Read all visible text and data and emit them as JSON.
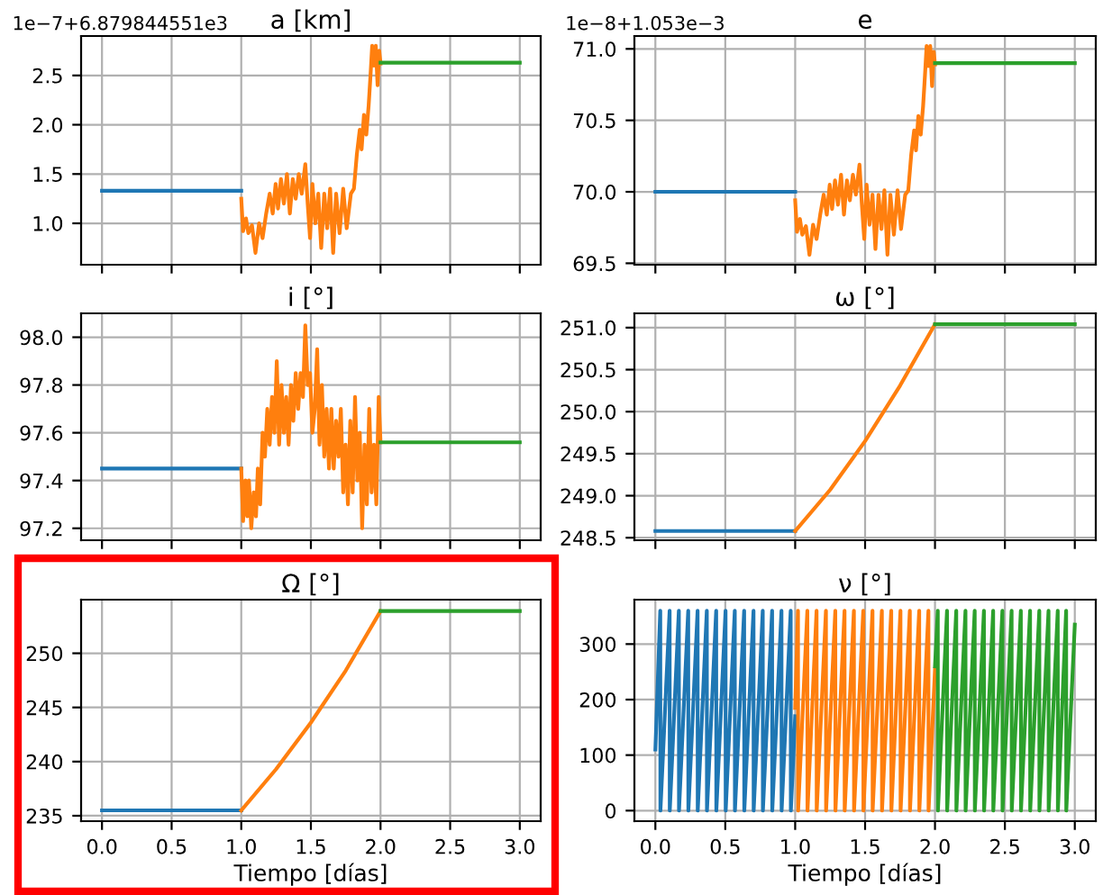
{
  "chart_data": [
    {
      "type": "line",
      "title": "a [km]",
      "annotations": [
        "1e−7+6.879844551e3"
      ],
      "xlim": [
        -0.15,
        3.15
      ],
      "xticks": [
        0,
        0.5,
        1,
        1.5,
        2,
        2.5,
        3
      ],
      "ylim": [
        0.58,
        2.9
      ],
      "yticks": [
        {
          "value": 1.0,
          "label": "1.0"
        },
        {
          "value": 1.5,
          "label": "1.5"
        },
        {
          "value": 2.0,
          "label": "2.0"
        },
        {
          "value": 2.5,
          "label": "2.5"
        }
      ],
      "grid": true,
      "tick_labels": "y",
      "series": [
        {
          "color": "#1f77b4",
          "x": [
            0,
            1
          ],
          "values": [
            1.33,
            1.33
          ]
        },
        {
          "color": "#ff7f0e",
          "x": [
            1.0,
            1.013,
            1.034,
            1.051,
            1.077,
            1.102,
            1.128,
            1.153,
            1.179,
            1.204,
            1.226,
            1.247,
            1.264,
            1.285,
            1.306,
            1.328,
            1.349,
            1.37,
            1.391,
            1.413,
            1.434,
            1.46,
            1.477,
            1.494,
            1.511,
            1.532,
            1.553,
            1.574,
            1.596,
            1.617,
            1.638,
            1.66,
            1.681,
            1.706,
            1.732,
            1.757,
            1.787,
            1.809,
            1.83,
            1.851,
            1.864,
            1.881,
            1.898,
            1.915,
            1.928,
            1.94,
            1.953,
            1.966,
            1.979,
            1.991,
            2.0
          ],
          "values": [
            1.25,
            0.92,
            1.05,
            0.9,
            0.98,
            0.7,
            1.0,
            0.85,
            1.1,
            1.3,
            1.1,
            1.4,
            1.15,
            1.45,
            1.2,
            1.5,
            1.1,
            1.45,
            1.25,
            1.5,
            1.3,
            1.6,
            1.2,
            0.85,
            1.4,
            1.0,
            1.3,
            0.75,
            1.3,
            0.95,
            1.35,
            0.7,
            1.3,
            0.9,
            1.35,
            0.95,
            1.3,
            1.35,
            1.7,
            1.95,
            1.75,
            2.1,
            1.9,
            2.2,
            2.5,
            2.8,
            2.6,
            2.8,
            2.4,
            2.75,
            2.62
          ]
        },
        {
          "color": "#2ca02c",
          "x": [
            2,
            3
          ],
          "values": [
            2.63,
            2.63
          ]
        }
      ]
    },
    {
      "type": "line",
      "title": "e",
      "annotations": [
        "1e−8+1.053e−3"
      ],
      "xlim": [
        -0.15,
        3.15
      ],
      "xticks": [
        0,
        0.5,
        1,
        1.5,
        2,
        2.5,
        3
      ],
      "ylim": [
        69.49,
        71.09
      ],
      "yticks": [
        {
          "value": 69.5,
          "label": "69.5"
        },
        {
          "value": 70.0,
          "label": "70.0"
        },
        {
          "value": 70.5,
          "label": "70.5"
        },
        {
          "value": 71.0,
          "label": "71.0"
        }
      ],
      "grid": true,
      "tick_labels": "y",
      "series": [
        {
          "color": "#1f77b4",
          "x": [
            0,
            1
          ],
          "values": [
            70.0,
            70.0
          ]
        },
        {
          "color": "#ff7f0e",
          "x": [
            1.0,
            1.013,
            1.034,
            1.051,
            1.077,
            1.102,
            1.128,
            1.153,
            1.179,
            1.204,
            1.226,
            1.247,
            1.264,
            1.285,
            1.306,
            1.328,
            1.349,
            1.37,
            1.391,
            1.413,
            1.434,
            1.46,
            1.477,
            1.494,
            1.511,
            1.532,
            1.553,
            1.574,
            1.596,
            1.617,
            1.638,
            1.66,
            1.681,
            1.706,
            1.732,
            1.757,
            1.787,
            1.809,
            1.83,
            1.851,
            1.864,
            1.881,
            1.898,
            1.915,
            1.928,
            1.94,
            1.953,
            1.966,
            1.979,
            1.991,
            2.0
          ],
          "values": [
            69.94,
            69.72,
            69.81,
            69.7,
            69.76,
            69.56,
            69.77,
            69.67,
            69.84,
            69.98,
            69.84,
            70.05,
            69.88,
            70.08,
            69.91,
            70.12,
            69.84,
            70.08,
            69.94,
            70.12,
            69.98,
            70.19,
            69.91,
            69.67,
            70.05,
            69.77,
            69.98,
            69.6,
            69.98,
            69.74,
            70.01,
            69.56,
            69.98,
            69.7,
            70.01,
            69.74,
            69.98,
            70.01,
            70.26,
            70.43,
            70.29,
            70.53,
            70.4,
            70.6,
            70.81,
            71.02,
            70.88,
            71.02,
            70.74,
            70.98,
            70.89
          ]
        },
        {
          "color": "#2ca02c",
          "x": [
            2,
            3
          ],
          "values": [
            70.9,
            70.9
          ]
        }
      ]
    },
    {
      "type": "line",
      "title": "i [°]",
      "xlim": [
        -0.15,
        3.15
      ],
      "xticks": [
        0,
        0.5,
        1,
        1.5,
        2,
        2.5,
        3
      ],
      "ylim": [
        97.15,
        98.1
      ],
      "yticks": [
        97.2,
        97.4,
        97.6,
        97.8,
        {
          "value": 98.0,
          "label": "98.0"
        }
      ],
      "grid": true,
      "tick_labels": "y",
      "series": [
        {
          "color": "#1f77b4",
          "x": [
            0,
            1
          ],
          "values": [
            97.45,
            97.45
          ]
        },
        {
          "color": "#ff7f0e",
          "x": [
            1.0,
            1.013,
            1.03,
            1.043,
            1.055,
            1.072,
            1.089,
            1.106,
            1.119,
            1.136,
            1.153,
            1.17,
            1.187,
            1.204,
            1.221,
            1.238,
            1.255,
            1.272,
            1.289,
            1.306,
            1.323,
            1.34,
            1.357,
            1.374,
            1.391,
            1.409,
            1.426,
            1.443,
            1.46,
            1.477,
            1.494,
            1.511,
            1.528,
            1.545,
            1.562,
            1.579,
            1.596,
            1.613,
            1.63,
            1.647,
            1.664,
            1.681,
            1.698,
            1.715,
            1.732,
            1.749,
            1.766,
            1.783,
            1.8,
            1.817,
            1.834,
            1.851,
            1.868,
            1.885,
            1.902,
            1.919,
            1.936,
            1.953,
            1.97,
            1.987,
            2.0
          ],
          "values": [
            97.45,
            97.23,
            97.4,
            97.25,
            97.4,
            97.2,
            97.35,
            97.25,
            97.45,
            97.3,
            97.6,
            97.5,
            97.7,
            97.55,
            97.75,
            97.6,
            97.9,
            97.55,
            97.8,
            97.6,
            97.75,
            97.55,
            97.8,
            97.65,
            97.85,
            97.7,
            97.85,
            97.75,
            98.05,
            97.8,
            97.85,
            97.6,
            97.7,
            97.95,
            97.55,
            97.8,
            97.5,
            97.7,
            97.45,
            97.7,
            97.45,
            97.65,
            97.5,
            97.7,
            97.35,
            97.55,
            97.3,
            97.65,
            97.35,
            97.75,
            97.4,
            97.6,
            97.2,
            97.55,
            97.3,
            97.7,
            97.35,
            97.55,
            97.3,
            97.75,
            97.56
          ]
        },
        {
          "color": "#2ca02c",
          "x": [
            2,
            3
          ],
          "values": [
            97.56,
            97.56
          ]
        }
      ]
    },
    {
      "type": "line",
      "title": "ω [°]",
      "xlim": [
        -0.15,
        3.15
      ],
      "xticks": [
        0,
        0.5,
        1,
        1.5,
        2,
        2.5,
        3
      ],
      "ylim": [
        248.47,
        251.17
      ],
      "yticks": [
        248.5,
        {
          "value": 249.0,
          "label": "249.0"
        },
        249.5,
        {
          "value": 250.0,
          "label": "250.0"
        },
        250.5,
        {
          "value": 251.0,
          "label": "251.0"
        }
      ],
      "grid": true,
      "tick_labels": "y",
      "series": [
        {
          "color": "#1f77b4",
          "x": [
            0,
            1
          ],
          "values": [
            248.58,
            248.58
          ]
        },
        {
          "color": "#ff7f0e",
          "x": [
            1.0,
            1.25,
            1.5,
            1.75,
            2.0
          ],
          "values": [
            248.58,
            249.07,
            249.65,
            250.31,
            251.04
          ]
        },
        {
          "color": "#2ca02c",
          "x": [
            2,
            3
          ],
          "values": [
            251.04,
            251.04
          ]
        }
      ]
    },
    {
      "type": "line",
      "title": "Ω [°]",
      "xlabel": "Tiempo [días]",
      "xlim": [
        -0.15,
        3.15
      ],
      "xticks": [
        {
          "value": 0.0,
          "label": "0.0"
        },
        {
          "value": 0.5,
          "label": "0.5"
        },
        {
          "value": 1.0,
          "label": "1.0"
        },
        {
          "value": 1.5,
          "label": "1.5"
        },
        {
          "value": 2.0,
          "label": "2.0"
        },
        {
          "value": 2.5,
          "label": "2.5"
        },
        {
          "value": 3.0,
          "label": "3.0"
        }
      ],
      "ylim": [
        234.5,
        254.95
      ],
      "yticks": [
        235,
        240,
        245,
        250
      ],
      "grid": true,
      "series": [
        {
          "color": "#1f77b4",
          "x": [
            0,
            1
          ],
          "values": [
            235.5,
            235.5
          ]
        },
        {
          "color": "#ff7f0e",
          "x": [
            1.0,
            1.25,
            1.5,
            1.75,
            2.0
          ],
          "values": [
            235.5,
            239.3,
            243.6,
            248.4,
            253.9
          ]
        },
        {
          "color": "#2ca02c",
          "x": [
            2,
            3
          ],
          "values": [
            253.9,
            253.9
          ]
        }
      ]
    },
    {
      "type": "line",
      "title": "ν [°]",
      "xlabel": "Tiempo [días]",
      "xlim": [
        -0.15,
        3.15
      ],
      "xticks": [
        {
          "value": 0.0,
          "label": "0.0"
        },
        {
          "value": 0.5,
          "label": "0.5"
        },
        {
          "value": 1.0,
          "label": "1.0"
        },
        {
          "value": 1.5,
          "label": "1.5"
        },
        {
          "value": 2.0,
          "label": "2.0"
        },
        {
          "value": 2.5,
          "label": "2.5"
        },
        {
          "value": 3.0,
          "label": "3.0"
        }
      ],
      "ylim": [
        -19,
        380
      ],
      "yticks": [
        0,
        100,
        200,
        300
      ],
      "grid": true,
      "series": [
        {
          "color": "#1f77b4",
          "x": [
            0.0,
            0.035,
            0.036,
            0.102,
            0.103,
            0.168,
            0.169,
            0.235,
            0.236,
            0.302,
            0.303,
            0.368,
            0.369,
            0.435,
            0.436,
            0.502,
            0.503,
            0.568,
            0.569,
            0.635,
            0.636,
            0.702,
            0.703,
            0.768,
            0.769,
            0.835,
            0.836,
            0.902,
            0.903,
            0.968,
            0.969,
            1.0
          ],
          "values": [
            110,
            360,
            0,
            360,
            0,
            360,
            0,
            360,
            0,
            360,
            0,
            360,
            0,
            360,
            0,
            360,
            0,
            360,
            0,
            360,
            0,
            360,
            0,
            360,
            0,
            360,
            0,
            360,
            0,
            360,
            0,
            170
          ]
        },
        {
          "color": "#ff7f0e",
          "x": [
            1.0,
            1.02,
            1.021,
            1.087,
            1.088,
            1.153,
            1.154,
            1.22,
            1.221,
            1.287,
            1.288,
            1.353,
            1.354,
            1.42,
            1.421,
            1.487,
            1.488,
            1.553,
            1.554,
            1.62,
            1.621,
            1.687,
            1.688,
            1.753,
            1.754,
            1.82,
            1.821,
            1.887,
            1.888,
            1.953,
            1.954,
            2.0
          ],
          "values": [
            185,
            360,
            0,
            360,
            0,
            360,
            0,
            360,
            0,
            360,
            0,
            360,
            0,
            360,
            0,
            360,
            0,
            360,
            0,
            360,
            0,
            360,
            0,
            360,
            0,
            360,
            0,
            360,
            0,
            360,
            0,
            255
          ]
        },
        {
          "color": "#2ca02c",
          "x": [
            2.0,
            2.02,
            2.021,
            2.086,
            2.087,
            2.152,
            2.153,
            2.218,
            2.219,
            2.284,
            2.285,
            2.35,
            2.351,
            2.416,
            2.417,
            2.482,
            2.483,
            2.548,
            2.549,
            2.614,
            2.615,
            2.68,
            2.681,
            2.746,
            2.747,
            2.812,
            2.813,
            2.878,
            2.879,
            2.938,
            2.939,
            3.0
          ],
          "values": [
            260,
            360,
            0,
            360,
            0,
            360,
            0,
            360,
            0,
            360,
            0,
            360,
            0,
            360,
            0,
            360,
            0,
            360,
            0,
            360,
            0,
            360,
            0,
            360,
            0,
            360,
            0,
            360,
            0,
            360,
            0,
            335
          ]
        }
      ]
    }
  ]
}
